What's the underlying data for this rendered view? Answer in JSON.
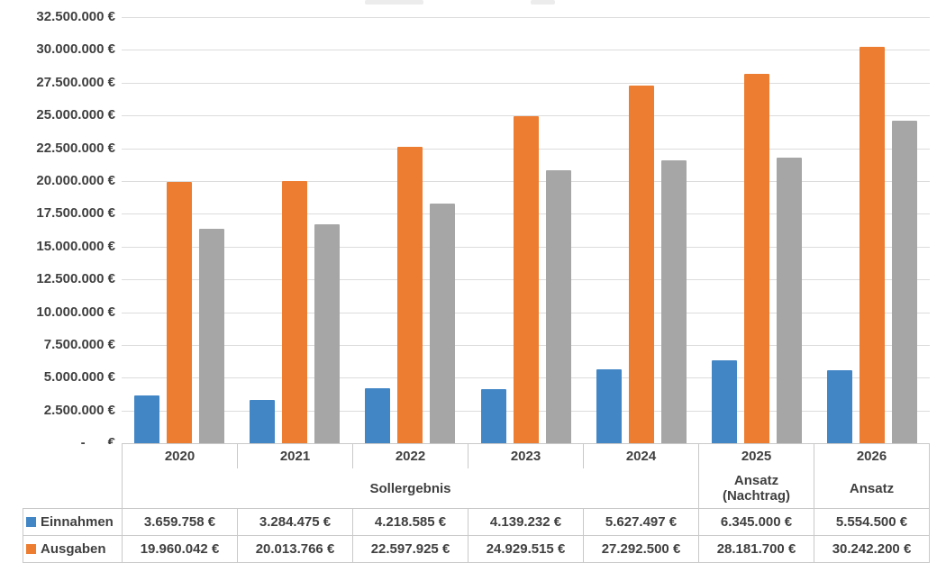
{
  "accent_colors": {
    "einnahmen_blue": "#4286C6",
    "ausgaben_orange": "#ED7D31",
    "series3_gray": "#A6A6A6",
    "text": "#404040",
    "gridline": "#dcdcdc",
    "table_border": "#c9c9c9"
  },
  "chart_data": {
    "type": "bar",
    "title": "",
    "title_note": "title cropped off top edge; only faint letter bottoms visible",
    "categories": [
      "2020",
      "2021",
      "2022",
      "2023",
      "2024",
      "2025",
      "2026"
    ],
    "series": [
      {
        "name": "Einnahmen",
        "color": "#4286C6",
        "name_visible": true,
        "values": [
          3659758,
          3284475,
          4218585,
          4139232,
          5627497,
          6345000,
          5554500
        ]
      },
      {
        "name": "Ausgaben",
        "color": "#ED7D31",
        "name_visible": true,
        "values": [
          19960042,
          20013766,
          22597925,
          24929515,
          27292500,
          28181700,
          30242200
        ]
      },
      {
        "name": "",
        "color": "#A6A6A6",
        "name_visible": false,
        "values_estimated": true,
        "values": [
          16350000,
          16700000,
          18300000,
          20800000,
          21600000,
          21800000,
          24600000
        ]
      }
    ],
    "xlabel": "",
    "ylabel": "",
    "ylim": [
      0,
      32500000
    ],
    "y_tick_step": 2500000,
    "grid": true,
    "legend_position": "in data table at left",
    "y_tick_labels": [
      "32.500.000 €",
      "30.000.000 €",
      "27.500.000 €",
      "25.000.000 €",
      "22.500.000 €",
      "20.000.000 €",
      "17.500.000 €",
      "15.000.000 €",
      "12.500.000 €",
      "10.000.000 €",
      "7.500.000 €",
      "5.000.000 €",
      "2.500.000 €",
      "-      €"
    ]
  },
  "table": {
    "year_headers": [
      "2020",
      "2021",
      "2022",
      "2023",
      "2024",
      "2025",
      "2026"
    ],
    "subheaders": [
      {
        "label": "Sollergebnis",
        "colspan": 5
      },
      {
        "label": "Ansatz\n(Nachtrag)",
        "colspan": 1
      },
      {
        "label": "Ansatz",
        "colspan": 1
      }
    ],
    "rows": [
      {
        "label": "Einnahmen",
        "key_color": "#4286C6",
        "values": [
          "3.659.758 €",
          "3.284.475 €",
          "4.218.585 €",
          "4.139.232 €",
          "5.627.497 €",
          "6.345.000 €",
          "5.554.500 €"
        ]
      },
      {
        "label": "Ausgaben",
        "key_color": "#ED7D31",
        "values": [
          "19.960.042 €",
          "20.013.766 €",
          "22.597.925 €",
          "24.929.515 €",
          "27.292.500 €",
          "28.181.700 €",
          "30.242.200 €"
        ]
      }
    ]
  }
}
